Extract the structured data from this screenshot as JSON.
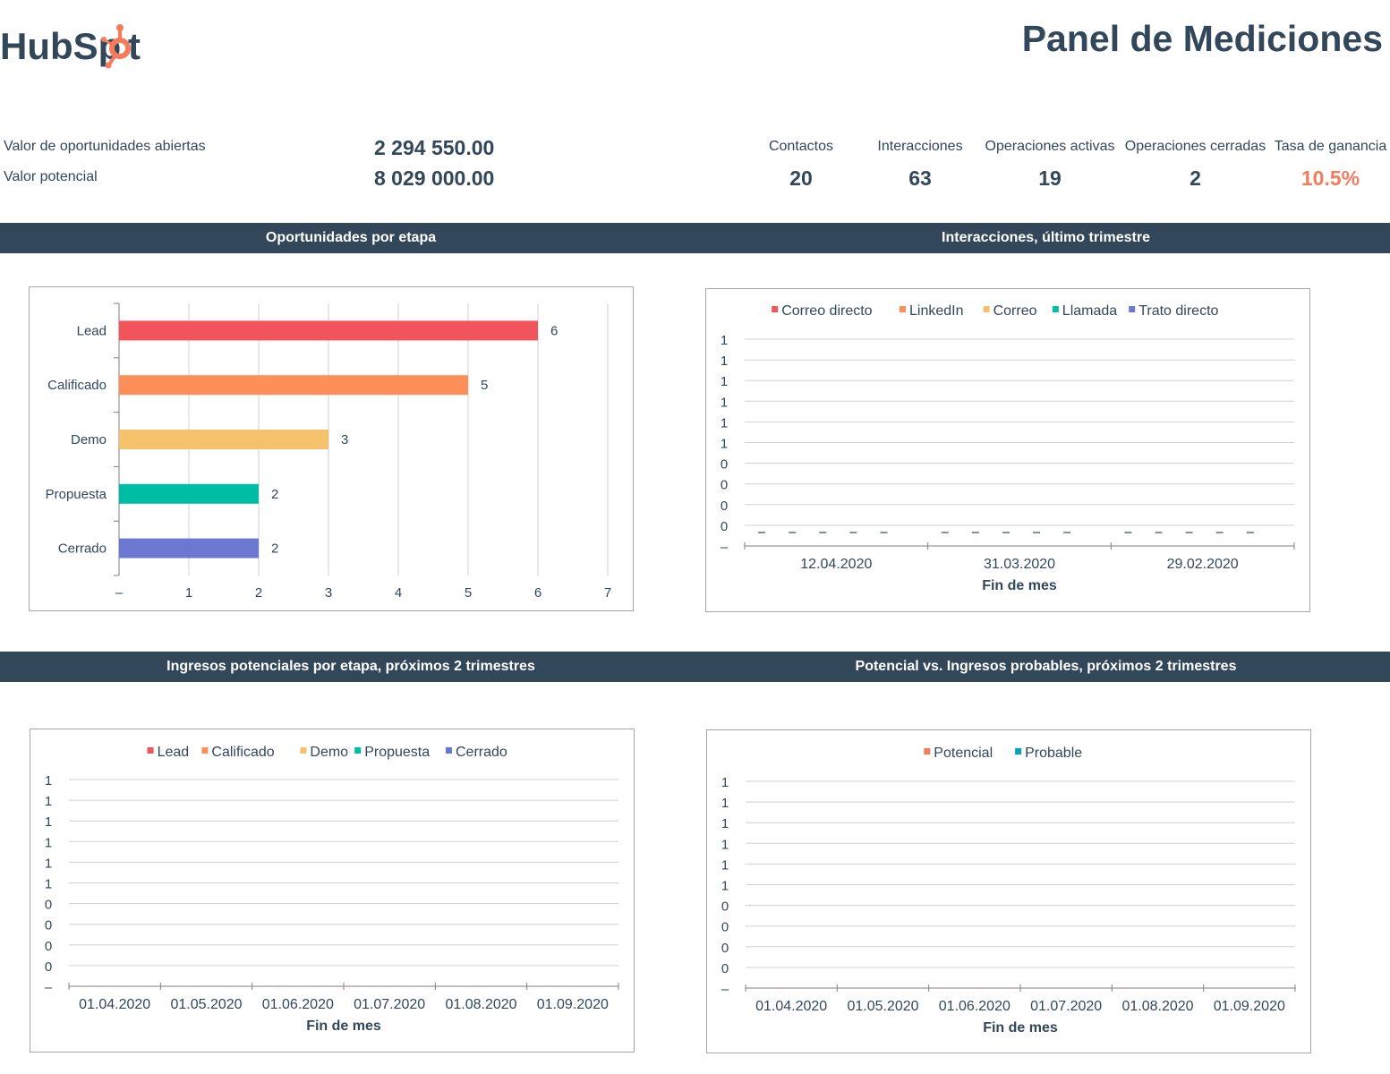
{
  "header": {
    "logo_text": "HubSpot",
    "title": "Panel de Mediciones"
  },
  "summary": {
    "open_label": "Valor de oportunidades abiertas",
    "open_value": "2 294 550.00",
    "potential_label": "Valor potencial",
    "potential_value": "8 029 000.00"
  },
  "metrics": [
    {
      "label": "Contactos",
      "value": "20"
    },
    {
      "label": "Interacciones",
      "value": "63"
    },
    {
      "label": "Operaciones activas",
      "value": "19"
    },
    {
      "label": "Operaciones cerradas",
      "value": "2"
    },
    {
      "label": "Tasa de ganancia",
      "value": "10.5%"
    }
  ],
  "colors": {
    "dark": "#33475b",
    "accent": "#f47c5c",
    "lead": "#f2545b",
    "calificado": "#ff8f59",
    "demo": "#f5c26b",
    "propuesta": "#00bda5",
    "cerrado": "#6a78d1",
    "probable": "#00a4bd"
  },
  "sections": {
    "s1": "Oportunidades por etapa",
    "s2": "Interacciones, último trimestre",
    "s3": "Ingresos potenciales por etapa, próximos 2 trimestres",
    "s4": "Potencial vs. Ingresos probables, próximos 2 trimestres"
  },
  "chart_data": [
    {
      "type": "bar",
      "orientation": "horizontal",
      "categories": [
        "Lead",
        "Calificado",
        "Demo",
        "Propuesta",
        "Cerrado"
      ],
      "values": [
        6,
        5,
        3,
        2,
        2
      ],
      "xticks": [
        "–",
        "1",
        "2",
        "3",
        "4",
        "5",
        "6",
        "7"
      ],
      "xlim": [
        0,
        7
      ],
      "grid": true
    },
    {
      "type": "line",
      "legend": [
        "Correo directo",
        "LinkedIn",
        "Correo",
        "Llamada",
        "Trato directo"
      ],
      "legend_position": "top",
      "yticks": [
        "1",
        "1",
        "1",
        "1",
        "1",
        "1",
        "0",
        "0",
        "0",
        "0",
        "–"
      ],
      "categories": [
        "12.04.2020",
        "31.03.2020",
        "29.02.2020"
      ],
      "xlabel": "Fin de mes",
      "values_per_category": [
        0,
        0,
        0,
        0,
        0
      ],
      "grid": true
    },
    {
      "type": "bar",
      "legend": [
        "Lead",
        "Calificado",
        "Demo",
        "Propuesta",
        "Cerrado"
      ],
      "legend_position": "top",
      "yticks": [
        "1",
        "1",
        "1",
        "1",
        "1",
        "1",
        "0",
        "0",
        "0",
        "0",
        "–"
      ],
      "categories": [
        "01.04.2020",
        "01.05.2020",
        "01.06.2020",
        "01.07.2020",
        "01.08.2020",
        "01.09.2020"
      ],
      "xlabel": "Fin de mes",
      "grid": true
    },
    {
      "type": "bar",
      "legend": [
        "Potencial",
        "Probable"
      ],
      "legend_position": "top",
      "yticks": [
        "1",
        "1",
        "1",
        "1",
        "1",
        "1",
        "0",
        "0",
        "0",
        "0",
        "–"
      ],
      "categories": [
        "01.04.2020",
        "01.05.2020",
        "01.06.2020",
        "01.07.2020",
        "01.08.2020",
        "01.09.2020"
      ],
      "xlabel": "Fin de mes",
      "grid": true
    }
  ]
}
